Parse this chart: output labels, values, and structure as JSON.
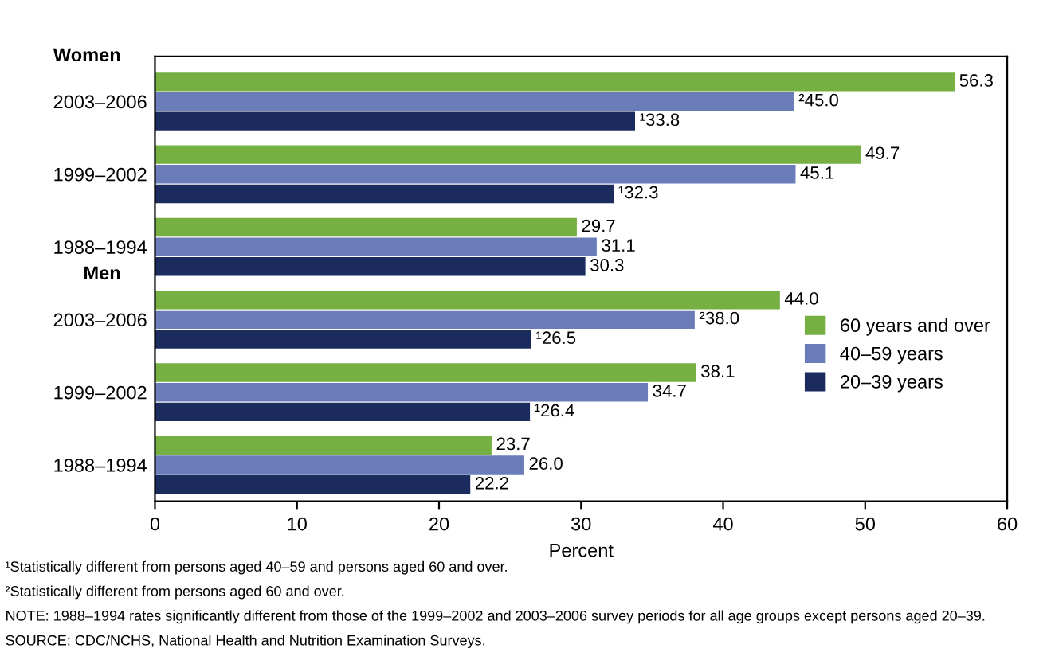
{
  "chart_data": {
    "type": "bar",
    "orientation": "horizontal",
    "xlabel": "Percent",
    "categories": [
      "2003–2006",
      "1999–2002",
      "1988–1994",
      "2003–2006",
      "1999–2002",
      "1988–1994"
    ],
    "series": [
      {
        "name": "60 years and over",
        "color": "#76b043",
        "values": [
          56.3,
          49.7,
          29.7,
          44.0,
          38.1,
          23.7
        ],
        "value_labels": [
          "56.3",
          "49.7",
          "29.7",
          "44.0",
          "38.1",
          "23.7"
        ]
      },
      {
        "name": "40–59 years",
        "color": "#6b7db8",
        "values": [
          45.0,
          45.1,
          31.1,
          38.0,
          34.7,
          26.0
        ],
        "value_labels": [
          "²45.0",
          "45.1",
          "31.1",
          "²38.0",
          "34.7",
          "26.0"
        ]
      },
      {
        "name": "20–39 years",
        "color": "#1c2b5e",
        "values": [
          33.8,
          32.3,
          30.3,
          26.5,
          26.4,
          22.2
        ],
        "value_labels": [
          "¹33.8",
          "¹32.3",
          "30.3",
          "¹26.5",
          "¹26.4",
          "22.2"
        ]
      }
    ],
    "xlim": [
      0,
      60
    ],
    "xticks": [
      0,
      10,
      20,
      30,
      40,
      50,
      60
    ],
    "grid": false,
    "legend": "right",
    "annotations": [
      "Women",
      "Men",
      "¹Statistically different from persons aged 40–59 and persons aged 60 and over.",
      "²Statistically different from persons aged 60 and over.",
      "NOTE: 1988–1994 rates significantly different from those of the 1999–2002 and 2003–2006 survey periods for all age groups except persons aged 20–39.",
      "SOURCE: CDC/NCHS, National Health and Nutrition Examination Surveys."
    ]
  }
}
